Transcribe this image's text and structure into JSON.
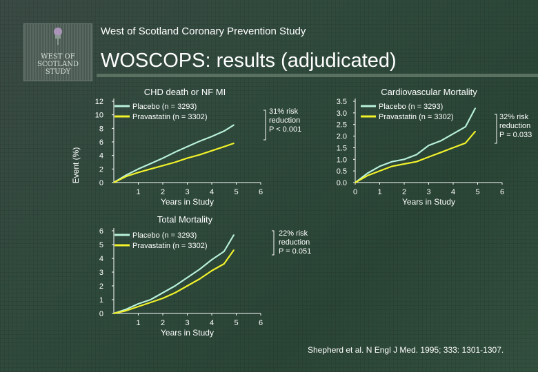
{
  "header": {
    "org_title": "West of Scotland Coronary Prevention Study",
    "main_title": "WOSCOPS: results (adjudicated)"
  },
  "logo": {
    "lines": [
      "WEST OF",
      "SCOTLAND",
      "STUDY"
    ]
  },
  "shared_ylabel": "Event (%)",
  "citation": "Shepherd et al. N Engl J Med. 1995; 333: 1301-1307.",
  "colors": {
    "placebo": "#b8f0dc",
    "pravastatin": "#f2f22a",
    "text": "#ffffff"
  },
  "chart_data": [
    {
      "type": "line",
      "title": "CHD death or NF MI",
      "xlabel": "Years in Study",
      "ylabel": "Event (%)",
      "xlim": [
        0,
        6
      ],
      "ylim": [
        0,
        12
      ],
      "xticks": [
        "1",
        "2",
        "3",
        "4",
        "5",
        "6"
      ],
      "yticks": [
        "0",
        "2",
        "4",
        "6",
        "8",
        "10",
        "12"
      ],
      "annotation": [
        "31% risk",
        "reduction",
        "P < 0.001"
      ],
      "series": [
        {
          "name": "Placebo (n = 3293)",
          "x": [
            0,
            0.5,
            1,
            1.5,
            2,
            2.5,
            3,
            3.5,
            4,
            4.5,
            4.9
          ],
          "y": [
            0,
            1.1,
            2.0,
            2.8,
            3.6,
            4.5,
            5.3,
            6.1,
            6.8,
            7.6,
            8.5
          ]
        },
        {
          "name": "Pravastatin (n = 3302)",
          "x": [
            0,
            0.5,
            1,
            1.5,
            2,
            2.5,
            3,
            3.5,
            4,
            4.5,
            4.9
          ],
          "y": [
            0,
            0.9,
            1.5,
            2.0,
            2.5,
            3.0,
            3.6,
            4.1,
            4.7,
            5.3,
            5.8
          ]
        }
      ]
    },
    {
      "type": "line",
      "title": "Cardiovascular Mortality",
      "xlabel": "Years in Study",
      "xlim": [
        0,
        6
      ],
      "ylim": [
        0,
        3.5
      ],
      "xticks": [
        "0",
        "1",
        "2",
        "3",
        "4",
        "5",
        "6"
      ],
      "yticks": [
        "0.0",
        "0.5",
        "1.0",
        "1.5",
        "2.0",
        "2.5",
        "3.0",
        "3.5"
      ],
      "annotation": [
        "32% risk",
        "reduction",
        "P = 0.033"
      ],
      "series": [
        {
          "name": "Placebo (n = 3293)",
          "x": [
            0,
            0.5,
            1,
            1.5,
            2,
            2.5,
            3,
            3.5,
            4,
            4.5,
            4.9
          ],
          "y": [
            0,
            0.4,
            0.7,
            0.9,
            1.0,
            1.2,
            1.6,
            1.8,
            2.1,
            2.4,
            3.2
          ]
        },
        {
          "name": "Pravastatin (n = 3302)",
          "x": [
            0,
            0.5,
            1,
            1.5,
            2,
            2.5,
            3,
            3.5,
            4,
            4.5,
            4.9
          ],
          "y": [
            0,
            0.3,
            0.5,
            0.7,
            0.8,
            0.9,
            1.1,
            1.3,
            1.5,
            1.7,
            2.2
          ]
        }
      ]
    },
    {
      "type": "line",
      "title": "Total Mortality",
      "xlabel": "Years in Study",
      "xlim": [
        0,
        6
      ],
      "ylim": [
        0,
        6
      ],
      "xticks": [
        "1",
        "2",
        "3",
        "4",
        "5",
        "6"
      ],
      "yticks": [
        "0",
        "1",
        "2",
        "3",
        "4",
        "5",
        "6"
      ],
      "annotation": [
        "22% risk",
        "reduction",
        "P = 0.051"
      ],
      "series": [
        {
          "name": "Placebo (n = 3293)",
          "x": [
            0,
            0.5,
            1,
            1.5,
            2,
            2.5,
            3,
            3.5,
            4,
            4.5,
            4.9
          ],
          "y": [
            0,
            0.3,
            0.7,
            1.0,
            1.5,
            2.0,
            2.6,
            3.2,
            3.9,
            4.5,
            5.7
          ]
        },
        {
          "name": "Pravastatin (n = 3302)",
          "x": [
            0,
            0.5,
            1,
            1.5,
            2,
            2.5,
            3,
            3.5,
            4,
            4.5,
            4.9
          ],
          "y": [
            0,
            0.2,
            0.5,
            0.8,
            1.1,
            1.5,
            2.0,
            2.5,
            3.1,
            3.6,
            4.6
          ]
        }
      ]
    }
  ]
}
